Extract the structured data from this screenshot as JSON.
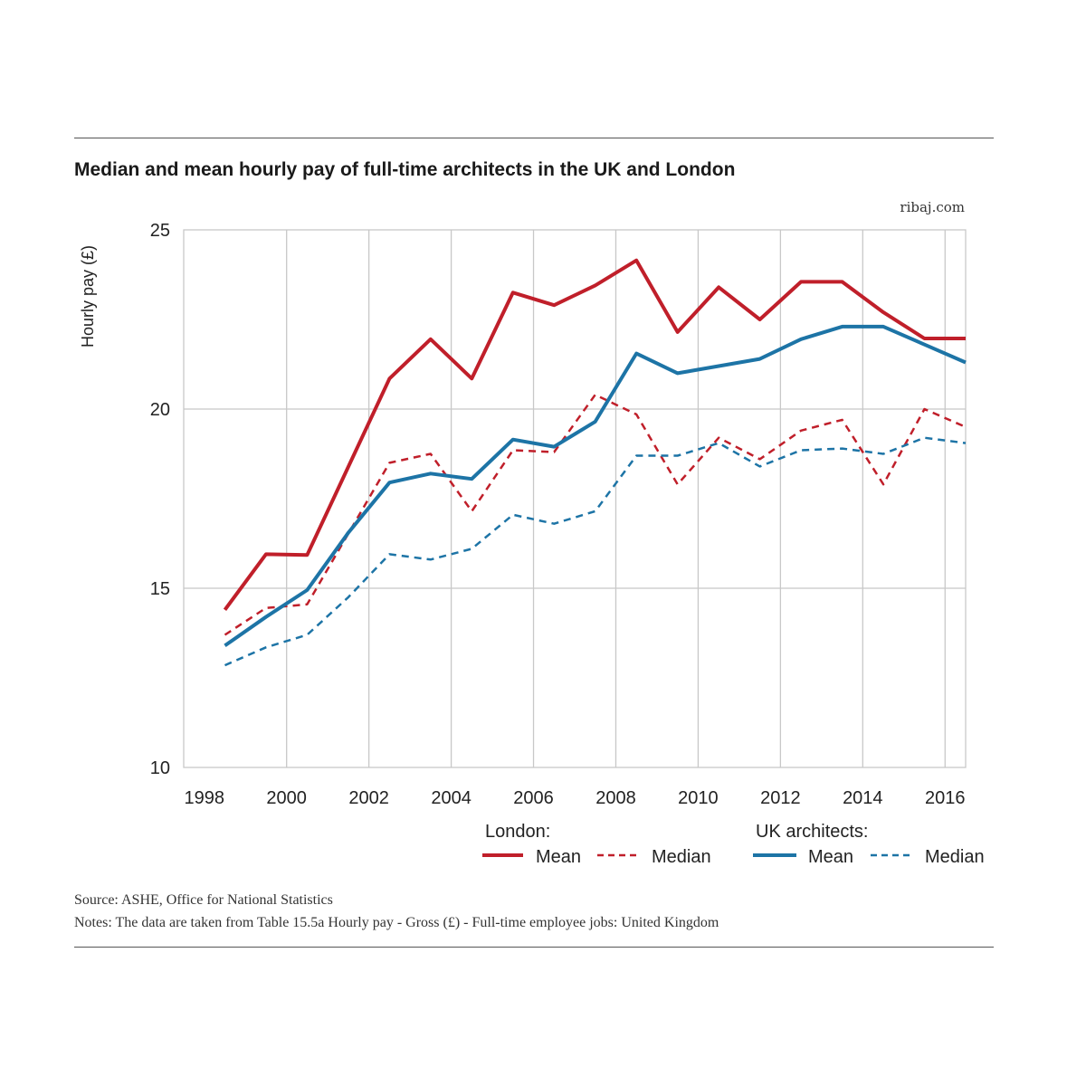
{
  "header": {
    "title": "Median and mean hourly pay of full-time architects in the UK and London",
    "credit": "ribaj.com"
  },
  "footer": {
    "source": "Source: ASHE, Office for National Statistics",
    "notes": "Notes: The data are taken from Table 15.5a   Hourly pay - Gross (£) - Full-time employee jobs: United Kingdom"
  },
  "legend": {
    "london_heading": "London:",
    "uk_heading": "UK architects:",
    "mean_label": "Mean",
    "median_label": "Median"
  },
  "chart_data": {
    "type": "line",
    "ylabel": "Hourly pay (£)",
    "xlabel": "",
    "xlim": [
      1998,
      2016
    ],
    "ylim": [
      10,
      25
    ],
    "x_ticks": [
      "1998",
      "2000",
      "2002",
      "2004",
      "2006",
      "2008",
      "2010",
      "2012",
      "2014",
      "2016"
    ],
    "y_ticks": [
      "10",
      "15",
      "20",
      "25"
    ],
    "grid": true,
    "legend_position": "bottom-right",
    "x": [
      1998.5,
      1999.5,
      2000.5,
      2001.5,
      2002.5,
      2003.5,
      2004.5,
      2005.5,
      2006.5,
      2007.5,
      2008.5,
      2009.5,
      2010.5,
      2011.5,
      2012.5,
      2013.5,
      2014.5,
      2015.5,
      2016.5
    ],
    "series": [
      {
        "group": "London",
        "name": "Mean",
        "style": "solid",
        "color": "#c01f2a",
        "x": [
          1998.5,
          1999.5,
          2000.5,
          2002.5,
          2003.5,
          2004.5,
          2005.5,
          2006.5,
          2007.5,
          2008.5,
          2009.5,
          2010.5,
          2011.5,
          2012.5,
          2013.5,
          2014.5,
          2015.5,
          2016.5
        ],
        "values": [
          14.4,
          15.95,
          15.93,
          20.85,
          21.95,
          20.85,
          23.25,
          22.9,
          23.45,
          24.15,
          22.15,
          23.4,
          22.5,
          23.55,
          23.55,
          22.7,
          21.97,
          21.97
        ]
      },
      {
        "group": "London",
        "name": "Median",
        "style": "dashed",
        "color": "#c01f2a",
        "x": [
          1998.5,
          1999.5,
          2000.5,
          2002.5,
          2003.5,
          2004.5,
          2005.5,
          2006.5,
          2007.5,
          2008.5,
          2009.5,
          2010.5,
          2011.5,
          2012.5,
          2013.5,
          2014.5,
          2015.5,
          2016.5
        ],
        "values": [
          13.7,
          14.45,
          14.55,
          18.5,
          18.75,
          17.15,
          18.85,
          18.8,
          20.4,
          19.85,
          17.9,
          19.2,
          18.6,
          19.4,
          19.7,
          17.9,
          20.0,
          19.5
        ]
      },
      {
        "group": "UK architects",
        "name": "Mean",
        "style": "solid",
        "color": "#1d74a6",
        "x": [
          1998.5,
          1999.5,
          2000.5,
          2001.5,
          2002.5,
          2003.5,
          2004.5,
          2005.5,
          2006.5,
          2007.5,
          2008.5,
          2009.5,
          2010.5,
          2011.5,
          2012.5,
          2013.5,
          2014.5,
          2015.5,
          2016.5
        ],
        "values": [
          13.4,
          14.2,
          14.95,
          16.55,
          17.95,
          18.2,
          18.05,
          19.15,
          18.95,
          19.65,
          21.55,
          21.0,
          21.2,
          21.4,
          21.95,
          22.3,
          22.3,
          21.8,
          21.3
        ]
      },
      {
        "group": "UK architects",
        "name": "Median",
        "style": "dashed",
        "color": "#1d74a6",
        "x": [
          1998.5,
          1999.5,
          2000.5,
          2001.5,
          2002.5,
          2003.5,
          2004.5,
          2005.5,
          2006.5,
          2007.5,
          2008.5,
          2009.5,
          2010.5,
          2011.5,
          2012.5,
          2013.5,
          2014.5,
          2015.5,
          2016.5
        ],
        "values": [
          12.85,
          13.35,
          13.7,
          14.75,
          15.95,
          15.8,
          16.1,
          17.05,
          16.8,
          17.15,
          18.7,
          18.7,
          19.05,
          18.4,
          18.85,
          18.9,
          18.75,
          19.2,
          19.05
        ]
      }
    ]
  }
}
